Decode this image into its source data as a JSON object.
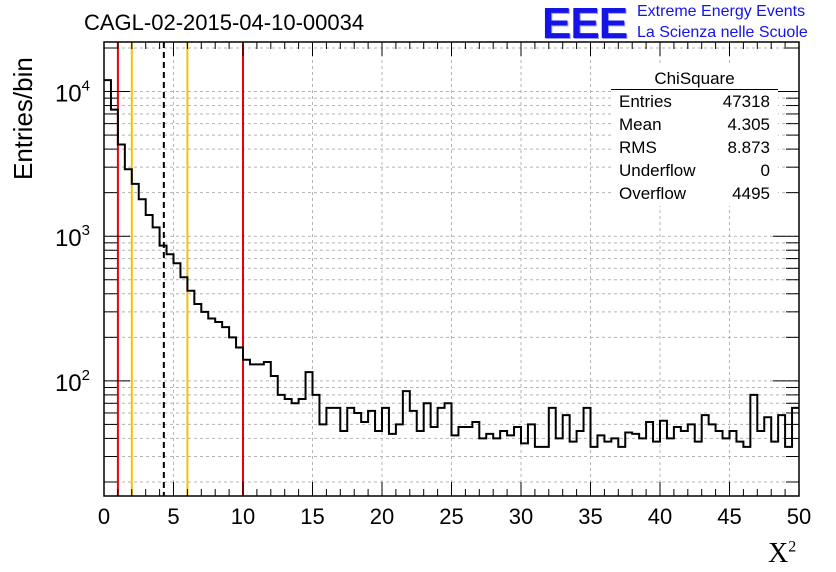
{
  "title": "CAGL-02-2015-04-10-00034",
  "logo": {
    "text": "EEE",
    "line1": "Extreme Energy Events",
    "line2": "La Scienza nelle Scuole",
    "color": "#1414e6"
  },
  "stats": {
    "name": "ChiSquare",
    "rows": [
      {
        "label": "Entries",
        "value": "47318"
      },
      {
        "label": "Mean",
        "value": "4.305"
      },
      {
        "label": "RMS",
        "value": "8.873"
      },
      {
        "label": "Underflow",
        "value": "0"
      },
      {
        "label": "Overflow",
        "value": "4495"
      }
    ]
  },
  "chart_data": {
    "type": "histogram",
    "xlabel": "X",
    "xlabel_sup": "2",
    "ylabel": "Entries/bin",
    "xlim": [
      0,
      50
    ],
    "ylim": [
      16,
      22000
    ],
    "log_y": true,
    "grid": true,
    "x_ticks": [
      "0",
      "5",
      "10",
      "15",
      "20",
      "25",
      "30",
      "35",
      "40",
      "45",
      "50"
    ],
    "y_ticks": [
      {
        "base": "10",
        "exp": "2",
        "value": 100
      },
      {
        "base": "10",
        "exp": "3",
        "value": 1000
      },
      {
        "base": "10",
        "exp": "4",
        "value": 10000
      }
    ],
    "bin_width": 0.5,
    "values": [
      12000,
      7500,
      4300,
      2900,
      2300,
      1800,
      1400,
      1150,
      860,
      750,
      650,
      520,
      420,
      340,
      300,
      270,
      255,
      235,
      200,
      170,
      140,
      130,
      130,
      135,
      108,
      80,
      75,
      70,
      75,
      115,
      80,
      50,
      65,
      65,
      45,
      65,
      60,
      52,
      62,
      45,
      65,
      43,
      50,
      85,
      62,
      45,
      70,
      48,
      65,
      70,
      42,
      48,
      48,
      52,
      40,
      43,
      40,
      45,
      42,
      48,
      37,
      50,
      35,
      35,
      65,
      40,
      58,
      38,
      45,
      65,
      35,
      42,
      38,
      40,
      35,
      44,
      43,
      40,
      52,
      38,
      53,
      40,
      48,
      45,
      50,
      38,
      58,
      50,
      45,
      40,
      45,
      38,
      35,
      80,
      45,
      56,
      38,
      58,
      35,
      65
    ],
    "vlines": [
      {
        "x": 1,
        "color": "#e8000b",
        "style": "solid"
      },
      {
        "x": 2,
        "color": "#f2c10a",
        "style": "solid"
      },
      {
        "x": 4.305,
        "color": "#000000",
        "style": "dashed"
      },
      {
        "x": 6,
        "color": "#f2c10a",
        "style": "solid"
      },
      {
        "x": 10,
        "color": "#e8000b",
        "style": "solid"
      }
    ]
  }
}
